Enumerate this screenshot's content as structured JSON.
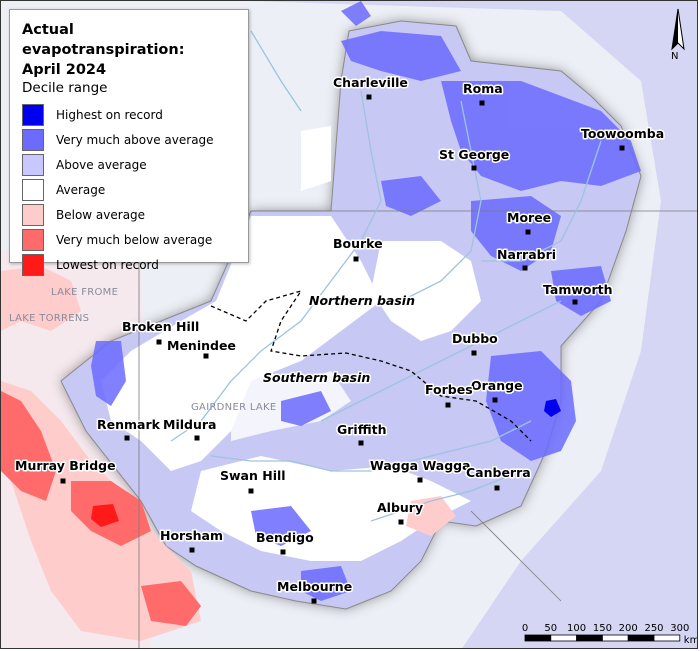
{
  "legend": {
    "title": "Actual evapotranspiration:\nApril 2024",
    "subtitle": "Decile range",
    "items": [
      {
        "label": "Highest on record",
        "color": "#0000ee"
      },
      {
        "label": "Very much above average",
        "color": "#6b6bff"
      },
      {
        "label": "Above average",
        "color": "#c8c8ff"
      },
      {
        "label": "Average",
        "color": "#ffffff"
      },
      {
        "label": "Below average",
        "color": "#ffcccc"
      },
      {
        "label": "Very much below average",
        "color": "#ff6b6b"
      },
      {
        "label": "Lowest on record",
        "color": "#ff1a1a"
      }
    ]
  },
  "north_label": "N",
  "towns": [
    "Charleville",
    "Roma",
    "Toowoomba",
    "St George",
    "Moree",
    "Narrabri",
    "Bourke",
    "Tamworth",
    "Broken Hill",
    "Menindee",
    "Dubbo",
    "Orange",
    "Forbes",
    "Renmark",
    "Mildura",
    "Griffith",
    "Murray Bridge",
    "Wagga Wagga",
    "Canberra",
    "Swan Hill",
    "Albury",
    "Horsham",
    "Bendigo",
    "Melbourne"
  ],
  "basins": [
    "Northern basin",
    "Southern basin"
  ],
  "lakes": [
    "LAKE FROME",
    "LAKE TORRENS",
    "GAIRDNER LAKE"
  ],
  "scale": {
    "ticks": [
      "0",
      "50",
      "100",
      "150",
      "200",
      "250",
      "300"
    ],
    "unit": "km"
  }
}
